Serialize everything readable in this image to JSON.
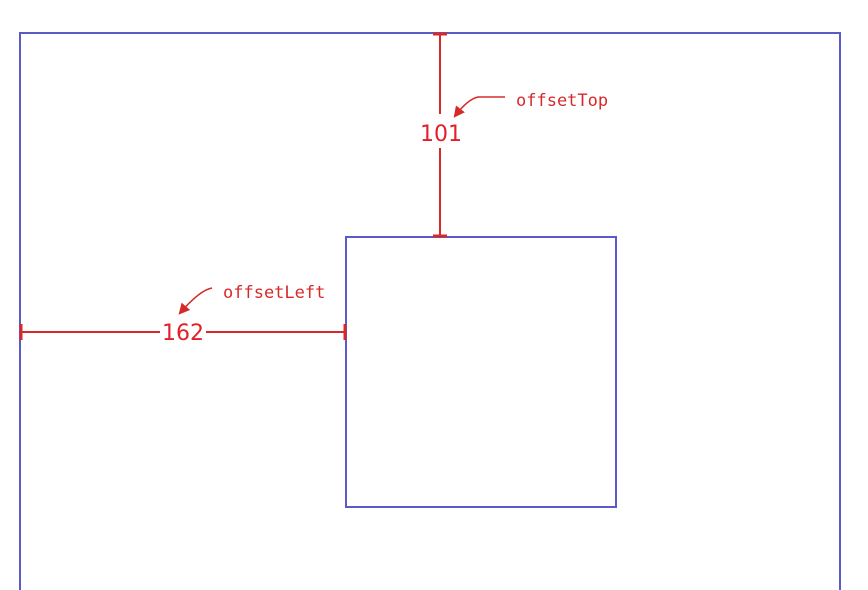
{
  "diagram": {
    "offset_top": {
      "value": "101",
      "label": "offsetTop"
    },
    "offset_left": {
      "value": "162",
      "label": "offsetLeft"
    },
    "colors": {
      "box_stroke": "#5b5bc8",
      "measure_line": "#d62a2a",
      "measure_text": "#e0202a",
      "background": "#ffffff"
    }
  }
}
